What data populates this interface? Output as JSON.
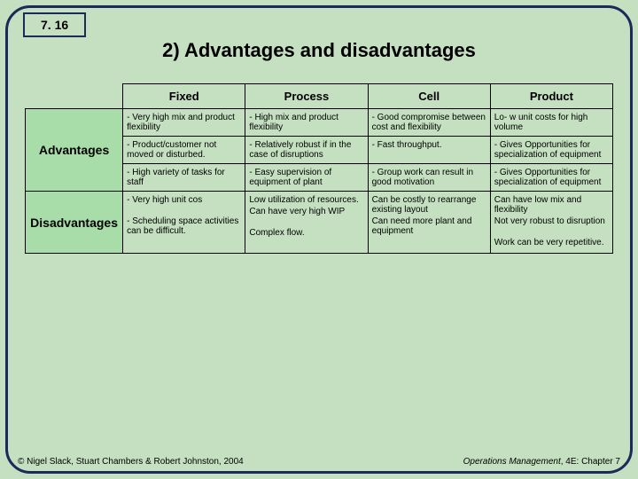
{
  "slide_number": "7. 16",
  "title": "2) Advantages and disadvantages",
  "columns": [
    "Fixed",
    "Process",
    "Cell",
    "Product"
  ],
  "row_labels": [
    "Advantages",
    "Disadvantages"
  ],
  "advantages": {
    "fixed": [
      "- Very high mix and product flexibility",
      "- Product/customer not moved or disturbed.",
      "- High variety of tasks for staff"
    ],
    "process": [
      "- High mix and product flexibility",
      "- Relatively robust if in the case of disruptions",
      "- Easy supervision of equipment of plant"
    ],
    "cell": [
      "- Good compromise between cost and flexibility",
      "- Fast throughput.",
      "- Group work can result in good motivation"
    ],
    "product": [
      "Lo- w unit costs for high volume",
      "- Gives Opportunities for specialization of equipment",
      "- Gives Opportunities for specialization of equipment"
    ]
  },
  "disadvantages": {
    "fixed": [
      "- Very high unit cos",
      "- Scheduling space activities can be difficult."
    ],
    "process": [
      "Low utilization of resources.",
      "Can have very high WIP",
      "Complex flow."
    ],
    "cell": [
      "Can be costly to rearrange existing layout",
      "Can need more plant and equipment"
    ],
    "product": [
      "Can have low mix and flexibility",
      "Not very robust to disruption",
      "Work can be very repetitive."
    ]
  },
  "footer_left": "© Nigel Slack, Stuart Chambers & Robert Johnston, 2004",
  "footer_right_italic": "Operations Management",
  "footer_right_rest": ", 4E: Chapter 7",
  "colors": {
    "background": "#c4e0c0",
    "frame_border": "#1a2a5a",
    "row_label_bg": "#a8dca8",
    "cell_border": "#000000"
  }
}
